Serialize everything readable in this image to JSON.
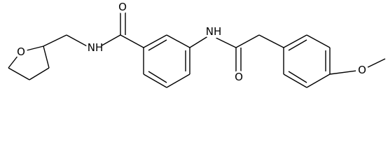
{
  "atoms": [
    {
      "label": "O"
    },
    {
      "label": "NH"
    },
    {
      "label": "O"
    },
    {
      "label": "NH"
    },
    {
      "label": "O"
    },
    {
      "label": "O"
    }
  ]
}
